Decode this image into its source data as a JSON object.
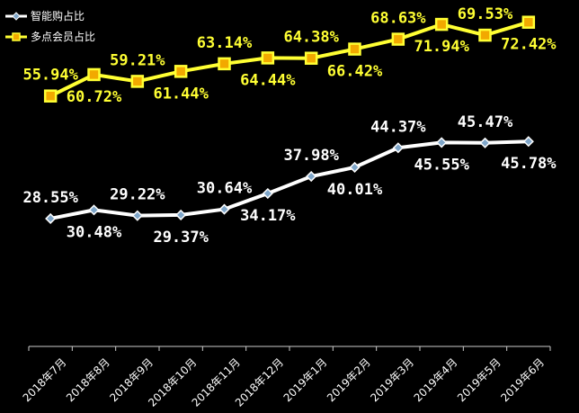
{
  "colors": {
    "background": "#000000",
    "series_white": "#ffffff",
    "series_yellow": "#ffff33",
    "marker_white_fill": "#7fa6c9",
    "marker_yellow_fill": "#f2a900",
    "axis": "#cccccc"
  },
  "chart_data": {
    "type": "line",
    "title": "",
    "xlabel": "",
    "ylabel": "",
    "ylim": [
      0,
      80
    ],
    "grid": false,
    "legend_position": "top-left",
    "categories": [
      "2018年7月",
      "2018年8月",
      "2018年9月",
      "2018年10月",
      "2018年11月",
      "2018年12月",
      "2019年1月",
      "2019年2月",
      "2019年3月",
      "2019年4月",
      "2019年5月",
      "2019年6月"
    ],
    "series": [
      {
        "name": "智能购占比",
        "values": [
          28.55,
          30.48,
          29.22,
          29.37,
          30.64,
          34.17,
          37.98,
          40.01,
          44.37,
          45.55,
          45.47,
          45.78
        ],
        "labels": [
          "28.55%",
          "30.48%",
          "29.22%",
          "29.37%",
          "30.64%",
          "34.17%",
          "37.98%",
          "40.01%",
          "44.37%",
          "45.55%",
          "45.47%",
          "45.78%"
        ]
      },
      {
        "name": "多点会员占比",
        "values": [
          55.94,
          60.72,
          59.21,
          61.44,
          63.14,
          64.44,
          64.38,
          66.42,
          68.63,
          71.94,
          69.53,
          72.42
        ],
        "labels": [
          "55.94%",
          "60.72%",
          "59.21%",
          "61.44%",
          "63.14%",
          "64.44%",
          "64.38%",
          "66.42%",
          "68.63%",
          "71.94%",
          "69.53%",
          "72.42%"
        ]
      }
    ]
  }
}
